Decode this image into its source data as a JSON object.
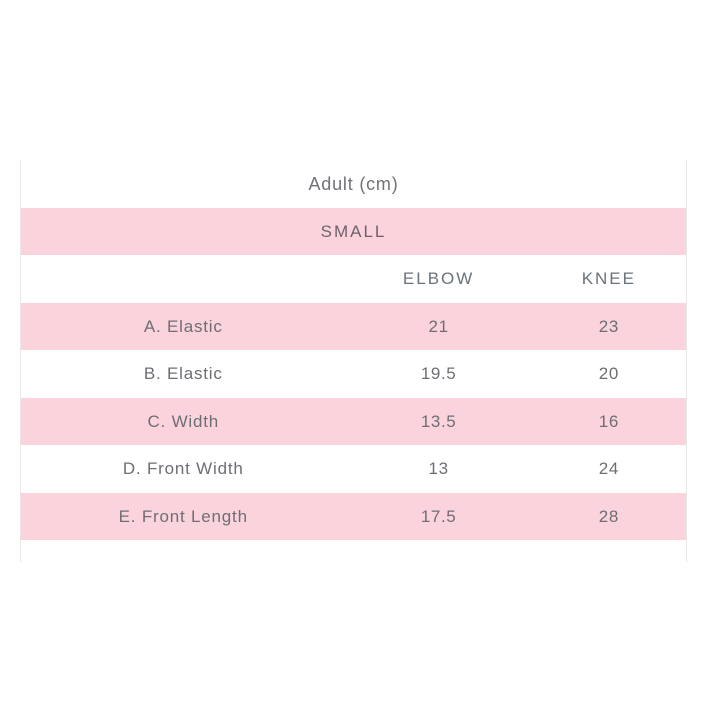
{
  "size_chart": {
    "title": "Adult (cm)",
    "size_label": "SMALL",
    "columns": [
      "ELBOW",
      "KNEE"
    ],
    "rows": [
      {
        "label": "A. Elastic",
        "elbow": "21",
        "knee": "23"
      },
      {
        "label": "B. Elastic",
        "elbow": "19.5",
        "knee": "20"
      },
      {
        "label": "C. Width",
        "elbow": "13.5",
        "knee": "16"
      },
      {
        "label": "D. Front Width",
        "elbow": "13",
        "knee": "24"
      },
      {
        "label": "E. Front Length",
        "elbow": "17.5",
        "knee": "28"
      }
    ],
    "colors": {
      "row_pink": "#fbd3dd",
      "text": "#6e6e74",
      "header_text": "#6a737c",
      "border": "#e8e8e8",
      "background": "#ffffff"
    }
  },
  "chart_data": {
    "type": "table",
    "title": "Adult (cm)",
    "subtitle": "SMALL",
    "columns": [
      "",
      "ELBOW",
      "KNEE"
    ],
    "rows": [
      [
        "A. Elastic",
        21,
        23
      ],
      [
        "B. Elastic",
        19.5,
        20
      ],
      [
        "C. Width",
        13.5,
        16
      ],
      [
        "D. Front Width",
        13,
        24
      ],
      [
        "E. Front Length",
        17.5,
        28
      ]
    ],
    "layout": "alternating pink/white rows, first column labels centered, title and size merged across full width"
  }
}
